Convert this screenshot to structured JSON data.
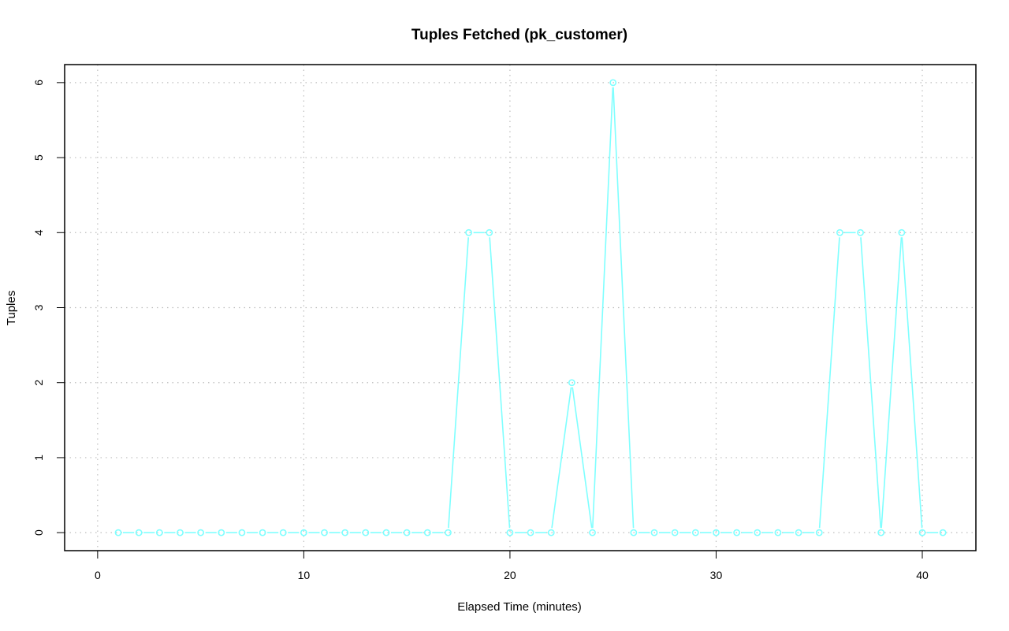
{
  "chart_data": {
    "type": "line",
    "title": "Tuples Fetched (pk_customer)",
    "xlabel": "Elapsed Time (minutes)",
    "ylabel": "Tuples",
    "xlim": [
      -1.6,
      42.6
    ],
    "ylim": [
      -0.24,
      6.24
    ],
    "x_ticks": [
      0,
      10,
      20,
      30,
      40
    ],
    "y_ticks": [
      0,
      1,
      2,
      3,
      4,
      5,
      6
    ],
    "grid": true,
    "legend": "none",
    "line_color": "#7fffff",
    "series": [
      {
        "x": [
          1,
          2,
          3,
          4,
          5,
          6,
          7,
          8,
          9,
          10,
          11,
          12,
          13,
          14,
          15,
          16,
          17,
          18,
          19,
          20,
          21,
          22,
          23,
          24,
          25,
          26,
          27,
          28,
          29,
          30,
          31,
          32,
          33,
          34,
          35,
          36,
          37,
          38,
          39,
          40,
          41
        ],
        "values": [
          0,
          0,
          0,
          0,
          0,
          0,
          0,
          0,
          0,
          0,
          0,
          0,
          0,
          0,
          0,
          0,
          0,
          4,
          4,
          0,
          0,
          0,
          2,
          0,
          6,
          0,
          0,
          0,
          0,
          0,
          0,
          0,
          0,
          0,
          0,
          4,
          4,
          0,
          4,
          0,
          0
        ]
      }
    ]
  }
}
